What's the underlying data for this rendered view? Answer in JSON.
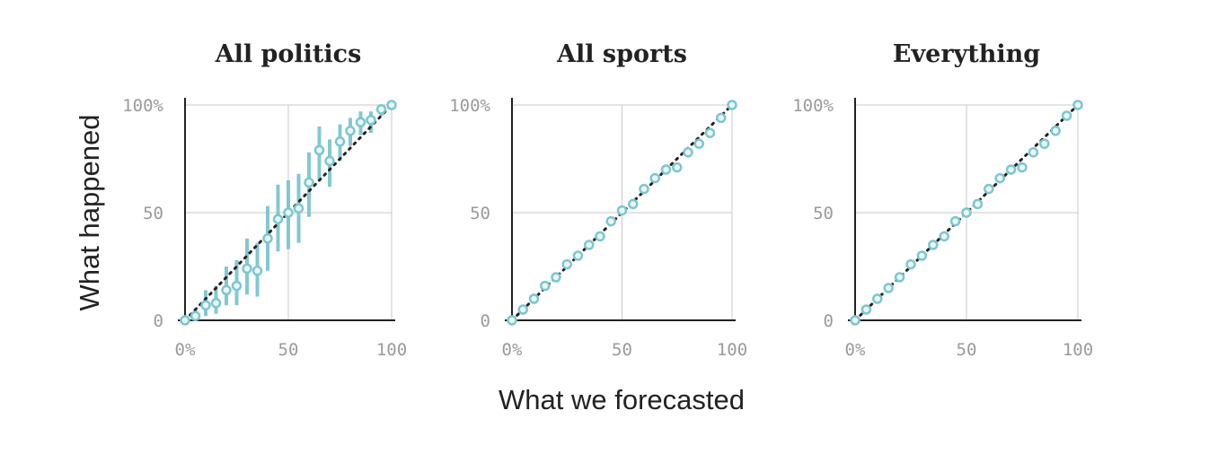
{
  "figure": {
    "ylabel": "What happened",
    "xlabel": "What we forecasted"
  },
  "chart_data": [
    {
      "type": "scatter",
      "title": "All politics",
      "xlim": [
        0,
        100
      ],
      "ylim": [
        0,
        100
      ],
      "x_ticks": [
        "0%",
        "50",
        "100"
      ],
      "y_ticks": [
        "0",
        "50",
        "100%"
      ],
      "grid": true,
      "reference_line": "y = x (dotted)",
      "colors": {
        "point": "#7dc6cf",
        "error_bar": "#7dc6cf",
        "reference": "#222222",
        "grid": "#c8c8c8"
      },
      "points": [
        {
          "x": 0,
          "y": 0,
          "low": 0,
          "high": 1
        },
        {
          "x": 5,
          "y": 2,
          "low": 0,
          "high": 5
        },
        {
          "x": 10,
          "y": 7,
          "low": 2,
          "high": 14
        },
        {
          "x": 15,
          "y": 8,
          "low": 3,
          "high": 16
        },
        {
          "x": 20,
          "y": 14,
          "low": 7,
          "high": 25
        },
        {
          "x": 25,
          "y": 16,
          "low": 7,
          "high": 28
        },
        {
          "x": 30,
          "y": 24,
          "low": 12,
          "high": 38
        },
        {
          "x": 35,
          "y": 23,
          "low": 11,
          "high": 36
        },
        {
          "x": 40,
          "y": 38,
          "low": 23,
          "high": 53
        },
        {
          "x": 45,
          "y": 47,
          "low": 32,
          "high": 63
        },
        {
          "x": 50,
          "y": 50,
          "low": 33,
          "high": 65
        },
        {
          "x": 55,
          "y": 52,
          "low": 36,
          "high": 68
        },
        {
          "x": 60,
          "y": 64,
          "low": 48,
          "high": 78
        },
        {
          "x": 65,
          "y": 79,
          "low": 65,
          "high": 90
        },
        {
          "x": 70,
          "y": 74,
          "low": 62,
          "high": 84
        },
        {
          "x": 75,
          "y": 83,
          "low": 74,
          "high": 91
        },
        {
          "x": 80,
          "y": 88,
          "low": 81,
          "high": 94
        },
        {
          "x": 85,
          "y": 92,
          "low": 86,
          "high": 97
        },
        {
          "x": 90,
          "y": 93,
          "low": 87,
          "high": 97
        },
        {
          "x": 95,
          "y": 98,
          "low": 95,
          "high": 100
        },
        {
          "x": 100,
          "y": 100,
          "low": 99,
          "high": 100
        }
      ]
    },
    {
      "type": "scatter",
      "title": "All sports",
      "xlim": [
        0,
        100
      ],
      "ylim": [
        0,
        100
      ],
      "x_ticks": [
        "0%",
        "50",
        "100"
      ],
      "y_ticks": [
        "0",
        "50",
        "100%"
      ],
      "grid": true,
      "reference_line": "y = x (dotted)",
      "colors": {
        "point": "#7dc6cf",
        "error_bar": "#7dc6cf",
        "reference": "#222222",
        "grid": "#c8c8c8"
      },
      "points": [
        {
          "x": 0,
          "y": 0
        },
        {
          "x": 5,
          "y": 5
        },
        {
          "x": 10,
          "y": 10
        },
        {
          "x": 15,
          "y": 16
        },
        {
          "x": 20,
          "y": 20
        },
        {
          "x": 25,
          "y": 26
        },
        {
          "x": 30,
          "y": 30
        },
        {
          "x": 35,
          "y": 35
        },
        {
          "x": 40,
          "y": 39
        },
        {
          "x": 45,
          "y": 46
        },
        {
          "x": 50,
          "y": 51
        },
        {
          "x": 55,
          "y": 54
        },
        {
          "x": 60,
          "y": 61
        },
        {
          "x": 65,
          "y": 66
        },
        {
          "x": 70,
          "y": 70
        },
        {
          "x": 75,
          "y": 71
        },
        {
          "x": 80,
          "y": 78
        },
        {
          "x": 85,
          "y": 82
        },
        {
          "x": 90,
          "y": 87
        },
        {
          "x": 95,
          "y": 94
        },
        {
          "x": 100,
          "y": 100
        }
      ]
    },
    {
      "type": "scatter",
      "title": "Everything",
      "xlim": [
        0,
        100
      ],
      "ylim": [
        0,
        100
      ],
      "x_ticks": [
        "0%",
        "50",
        "100"
      ],
      "y_ticks": [
        "0",
        "50",
        "100%"
      ],
      "grid": true,
      "reference_line": "y = x (dotted)",
      "colors": {
        "point": "#7dc6cf",
        "error_bar": "#7dc6cf",
        "reference": "#222222",
        "grid": "#c8c8c8"
      },
      "points": [
        {
          "x": 0,
          "y": 0
        },
        {
          "x": 5,
          "y": 5
        },
        {
          "x": 10,
          "y": 10
        },
        {
          "x": 15,
          "y": 15
        },
        {
          "x": 20,
          "y": 20
        },
        {
          "x": 25,
          "y": 26
        },
        {
          "x": 30,
          "y": 30
        },
        {
          "x": 35,
          "y": 35
        },
        {
          "x": 40,
          "y": 39
        },
        {
          "x": 45,
          "y": 46
        },
        {
          "x": 50,
          "y": 50
        },
        {
          "x": 55,
          "y": 54
        },
        {
          "x": 60,
          "y": 61
        },
        {
          "x": 65,
          "y": 66
        },
        {
          "x": 70,
          "y": 70
        },
        {
          "x": 75,
          "y": 71
        },
        {
          "x": 80,
          "y": 78
        },
        {
          "x": 85,
          "y": 82
        },
        {
          "x": 90,
          "y": 88
        },
        {
          "x": 95,
          "y": 95
        },
        {
          "x": 100,
          "y": 100
        }
      ]
    }
  ]
}
